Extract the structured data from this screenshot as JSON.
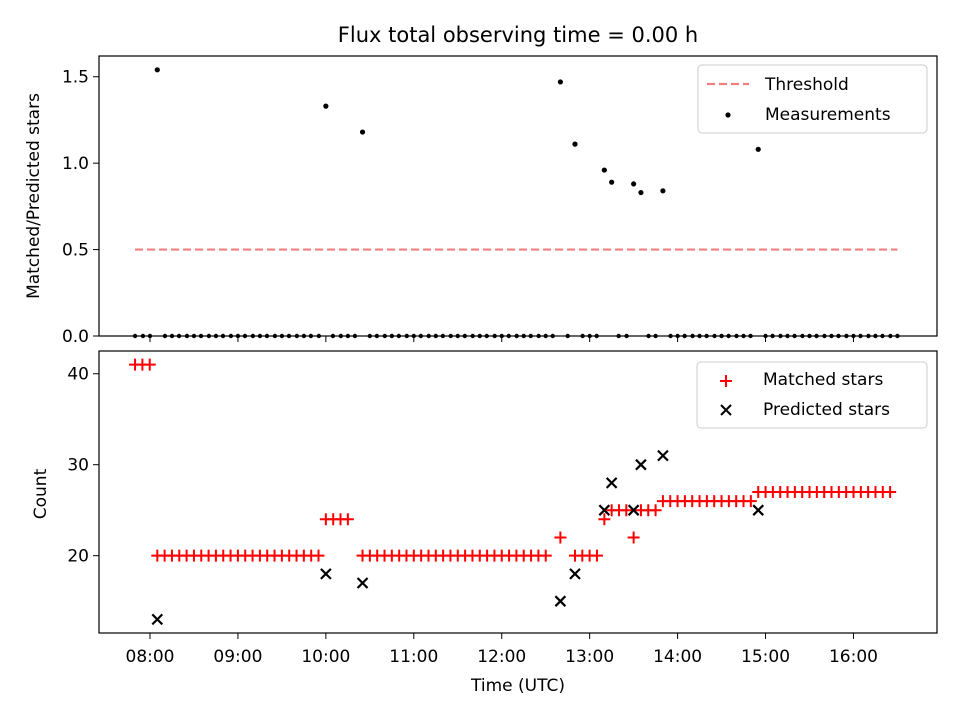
{
  "chart_data": [
    {
      "type": "scatter",
      "title": "Flux total observing time = 0.00 h",
      "xlabel": "",
      "ylabel": "Matched/Predicted stars",
      "xlim": [
        7.42,
        16.95
      ],
      "ylim": [
        0.0,
        1.62
      ],
      "yticks": [
        0.0,
        0.5,
        1.0,
        1.5
      ],
      "ytick_labels": [
        "0.0",
        "0.5",
        "1.0",
        "1.5"
      ],
      "legend": {
        "position": "top-right",
        "entries": [
          "Threshold",
          "Measurements"
        ]
      },
      "threshold": {
        "name": "Threshold",
        "value": 0.5,
        "x_range": [
          7.83,
          16.5
        ],
        "color": "#f08080"
      },
      "measurements": {
        "name": "Measurements",
        "color": "#000000",
        "x": [
          8.083,
          10.0,
          10.417,
          12.667,
          12.833,
          13.167,
          13.25,
          13.5,
          13.583,
          13.833,
          14.917
        ],
        "y": [
          1.54,
          1.33,
          1.18,
          1.47,
          1.11,
          0.96,
          0.89,
          0.88,
          0.83,
          0.84,
          1.08
        ],
        "zero_x": [
          7.83,
          7.92,
          8.0,
          8.17,
          8.25,
          8.33,
          8.42,
          8.5,
          8.58,
          8.67,
          8.75,
          8.83,
          8.92,
          9.0,
          9.08,
          9.17,
          9.25,
          9.33,
          9.42,
          9.5,
          9.58,
          9.67,
          9.75,
          9.83,
          9.92,
          10.08,
          10.17,
          10.25,
          10.33,
          10.5,
          10.58,
          10.67,
          10.75,
          10.83,
          10.92,
          11.0,
          11.08,
          11.17,
          11.25,
          11.33,
          11.42,
          11.5,
          11.58,
          11.67,
          11.75,
          11.83,
          11.92,
          12.0,
          12.08,
          12.17,
          12.25,
          12.33,
          12.42,
          12.5,
          12.58,
          12.75,
          12.92,
          13.0,
          13.08,
          13.33,
          13.42,
          13.67,
          13.75,
          13.92,
          14.0,
          14.08,
          14.17,
          14.25,
          14.33,
          14.42,
          14.5,
          14.58,
          14.67,
          14.75,
          14.83,
          15.0,
          15.08,
          15.17,
          15.25,
          15.33,
          15.42,
          15.5,
          15.58,
          15.67,
          15.75,
          15.83,
          15.92,
          16.0,
          16.08,
          16.17,
          16.25,
          16.33,
          16.42,
          16.5
        ]
      }
    },
    {
      "type": "scatter",
      "title": "",
      "xlabel": "Time (UTC)",
      "ylabel": "Count",
      "xlim": [
        7.42,
        16.95
      ],
      "ylim": [
        11.5,
        42.5
      ],
      "yticks": [
        20,
        30,
        40
      ],
      "ytick_labels": [
        "20",
        "30",
        "40"
      ],
      "xticks": [
        8,
        9,
        10,
        11,
        12,
        13,
        14,
        15,
        16
      ],
      "xtick_labels": [
        "08:00",
        "09:00",
        "10:00",
        "11:00",
        "12:00",
        "13:00",
        "14:00",
        "15:00",
        "16:00"
      ],
      "legend": {
        "position": "top-right",
        "entries": [
          "Matched stars",
          "Predicted stars"
        ]
      },
      "series": [
        {
          "name": "Matched stars",
          "marker": "plus",
          "color": "#ff0000",
          "segments": [
            {
              "from": 7.83,
              "to": 8.0,
              "value": 41
            },
            {
              "from": 8.083,
              "to": 9.917,
              "value": 20
            },
            {
              "from": 10.0,
              "to": 10.333,
              "value": 24
            },
            {
              "from": 10.417,
              "to": 12.583,
              "value": 20
            },
            {
              "from": 12.667,
              "to": 12.75,
              "value": 22
            },
            {
              "from": 12.833,
              "to": 13.083,
              "value": 20
            },
            {
              "from": 13.167,
              "to": 13.167,
              "value": 24
            },
            {
              "from": 13.25,
              "to": 13.417,
              "value": 25
            },
            {
              "from": 13.5,
              "to": 13.5,
              "value": 22
            },
            {
              "from": 13.583,
              "to": 13.75,
              "value": 25
            },
            {
              "from": 13.833,
              "to": 14.833,
              "value": 26
            },
            {
              "from": 14.917,
              "to": 16.5,
              "value": 27
            }
          ]
        },
        {
          "name": "Predicted stars",
          "marker": "x",
          "color": "#000000",
          "x": [
            8.083,
            10.0,
            10.417,
            12.667,
            12.833,
            13.167,
            13.25,
            13.5,
            13.583,
            13.833,
            14.917
          ],
          "y": [
            13,
            18,
            17,
            15,
            18,
            25,
            28,
            25,
            30,
            31,
            25
          ]
        }
      ]
    }
  ]
}
